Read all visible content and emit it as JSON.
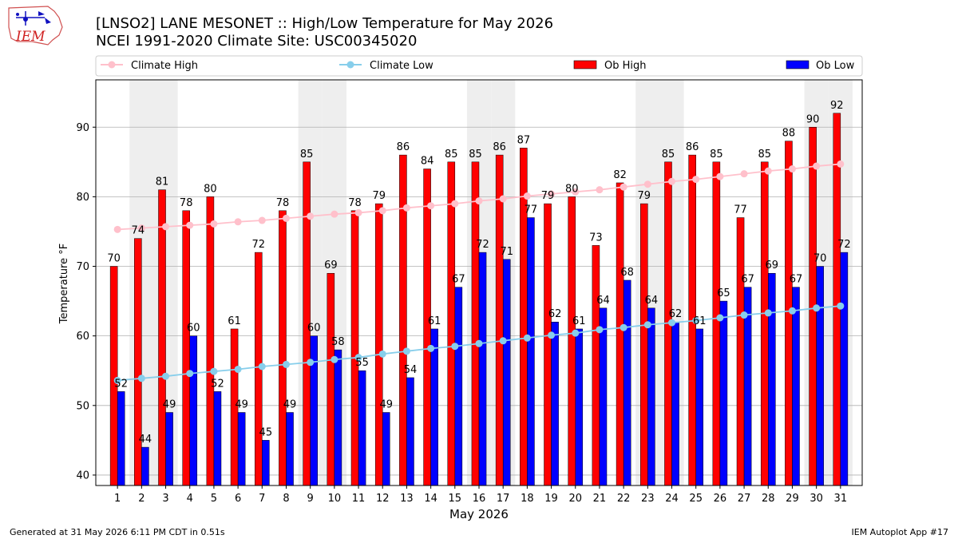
{
  "title": "[LNSO2] LANE MESONET :: High/Low Temperature for May 2026",
  "subtitle": "NCEI 1991-2020 Climate Site: USC00345020",
  "logo_text": "IEM",
  "footer_left": "Generated at 31 May 2026 6:11 PM CDT in 0.51s",
  "footer_right": "IEM Autoplot App #17",
  "colors": {
    "ob_high": "#ff0000",
    "ob_low": "#0000ff",
    "climate_high": "#ffc0cb",
    "climate_low": "#87ceeb",
    "weekend_band": "#eeeeee",
    "grid": "#b0b0b0"
  },
  "chart_data": {
    "type": "bar",
    "xlabel": "May 2026",
    "ylabel": "Temperature °F",
    "ylim": [
      38.5,
      96.8
    ],
    "yticks": [
      40,
      50,
      60,
      70,
      80,
      90
    ],
    "grid": true,
    "legend_placement": "top, above plot",
    "categories": [
      "1",
      "2",
      "3",
      "4",
      "5",
      "6",
      "7",
      "8",
      "9",
      "10",
      "11",
      "12",
      "13",
      "14",
      "15",
      "16",
      "17",
      "18",
      "19",
      "20",
      "21",
      "22",
      "23",
      "24",
      "25",
      "26",
      "27",
      "28",
      "29",
      "30",
      "31"
    ],
    "shaded_days": [
      "2",
      "3",
      "9",
      "10",
      "16",
      "17",
      "23",
      "24",
      "30",
      "31"
    ],
    "legend": [
      "Climate High",
      "Climate Low",
      "Ob High",
      "Ob Low"
    ],
    "series": [
      {
        "name": "Ob High",
        "kind": "bar",
        "values": [
          70,
          74,
          81,
          78,
          80,
          61,
          72,
          78,
          85,
          69,
          78,
          79,
          86,
          84,
          85,
          85,
          86,
          87,
          79,
          80,
          73,
          82,
          79,
          85,
          86,
          85,
          77,
          85,
          88,
          90,
          92
        ]
      },
      {
        "name": "Ob Low",
        "kind": "bar",
        "values": [
          52,
          44,
          49,
          60,
          52,
          49,
          45,
          49,
          60,
          58,
          55,
          49,
          54,
          61,
          67,
          72,
          71,
          77,
          62,
          61,
          64,
          68,
          64,
          62,
          61,
          65,
          67,
          69,
          67,
          70,
          72
        ]
      },
      {
        "name": "Climate High",
        "kind": "line",
        "values": [
          75.3,
          75.5,
          75.7,
          75.9,
          76.1,
          76.4,
          76.6,
          76.9,
          77.2,
          77.5,
          77.7,
          78.0,
          78.4,
          78.7,
          79.0,
          79.4,
          79.7,
          80.1,
          80.4,
          80.7,
          81.0,
          81.4,
          81.8,
          82.2,
          82.5,
          82.9,
          83.3,
          83.7,
          84.0,
          84.4,
          84.7
        ]
      },
      {
        "name": "Climate Low",
        "kind": "line",
        "values": [
          53.6,
          53.9,
          54.2,
          54.6,
          54.9,
          55.2,
          55.6,
          55.9,
          56.2,
          56.6,
          56.9,
          57.4,
          57.8,
          58.2,
          58.5,
          58.9,
          59.3,
          59.7,
          60.1,
          60.4,
          60.9,
          61.2,
          61.6,
          61.9,
          62.2,
          62.6,
          63.0,
          63.3,
          63.6,
          64.0,
          64.3
        ]
      }
    ]
  }
}
